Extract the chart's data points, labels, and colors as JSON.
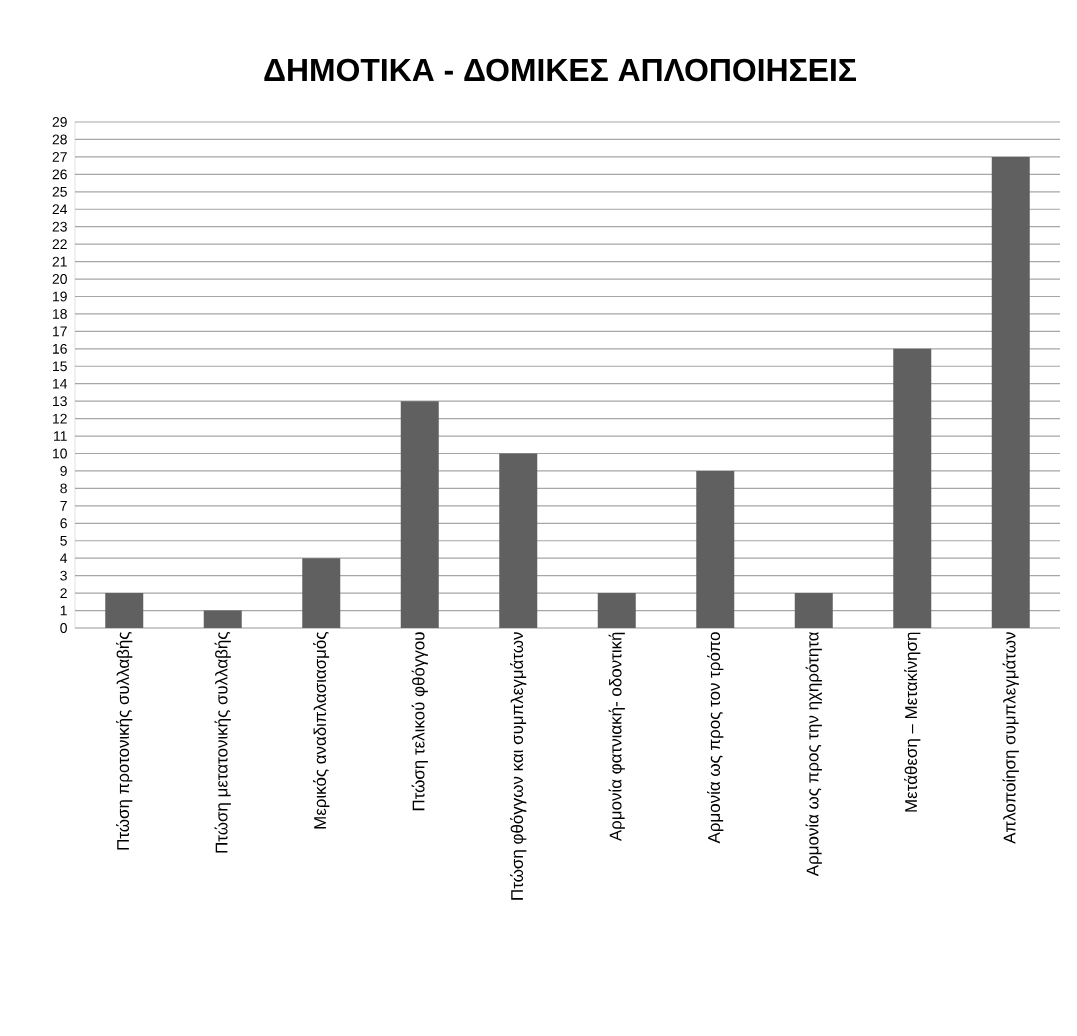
{
  "chart_data": {
    "type": "bar",
    "title": "ΔΗΜΟΤΙΚΑ - ΔΟΜΙΚΕΣ ΑΠΛΟΠΟΙΗΣΕΙΣ",
    "categories": [
      "Πτώση προτονικής συλλαβής",
      "Πτώση μετατονικής συλλαβής",
      "Μερικός αναδιπλασιασμός",
      "Πτώση τελικού φθόγγου",
      "Πτώση φθόγγων και συμπλεγμάτων",
      "Αρμονία φατνιακή- οδοντική",
      "Αρμονία ως προς τον τρόπο",
      "Αρμονία ως προς την ηχηρότητα",
      "Μετάθεση – Μετακίνηση",
      "Απλοποίηση συμπλεγμάτων"
    ],
    "values": [
      2,
      1,
      4,
      13,
      10,
      2,
      9,
      2,
      16,
      27
    ],
    "color": "#606060",
    "ylim": [
      0,
      29
    ],
    "yticks": [
      0,
      1,
      2,
      3,
      4,
      5,
      6,
      7,
      8,
      9,
      10,
      11,
      12,
      13,
      14,
      15,
      16,
      17,
      18,
      19,
      20,
      21,
      22,
      23,
      24,
      25,
      26,
      27,
      28,
      29
    ],
    "grid": "y"
  }
}
